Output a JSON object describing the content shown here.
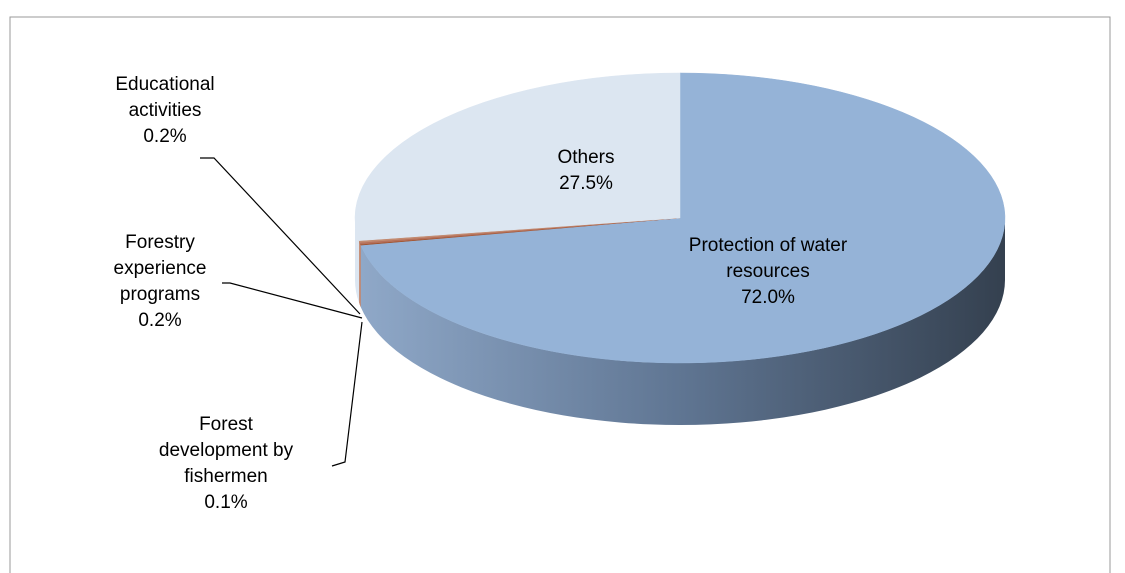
{
  "chart_data": {
    "type": "pie",
    "categories": [
      "Protection of water resources",
      "Forest development by fishermen",
      "Forestry experience programs",
      "Educational activities",
      "Others"
    ],
    "values": [
      72.0,
      0.1,
      0.2,
      0.2,
      27.5
    ],
    "value_labels": [
      "72.0%",
      "0.1%",
      "0.2%",
      "0.2%",
      "27.5%"
    ],
    "colors": [
      "#95b3d7",
      "#a0522d",
      "#b5705a",
      "#c28a70",
      "#dce6f1"
    ]
  }
}
